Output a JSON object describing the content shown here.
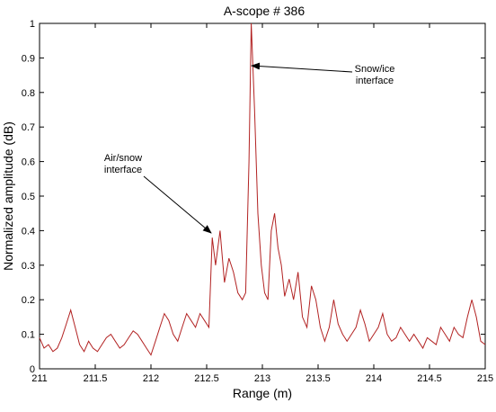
{
  "chart_data": {
    "type": "line",
    "title": "A-scope # 386",
    "xlabel": "Range (m)",
    "ylabel": "Normalized amplitude (dB)",
    "xlim": [
      211,
      215
    ],
    "ylim": [
      0,
      1
    ],
    "x_ticks": [
      211,
      211.5,
      212,
      212.5,
      213,
      213.5,
      214,
      214.5,
      215
    ],
    "x_tick_labels": [
      "211",
      "211.5",
      "212",
      "212.5",
      "213",
      "213.5",
      "214",
      "214.5",
      "215"
    ],
    "y_ticks": [
      0,
      0.1,
      0.2,
      0.3,
      0.4,
      0.5,
      0.6,
      0.7,
      0.8,
      0.9,
      1
    ],
    "y_tick_labels": [
      "0",
      "0.1",
      "0.2",
      "0.3",
      "0.4",
      "0.5",
      "0.6",
      "0.7",
      "0.8",
      "0.9",
      "1"
    ],
    "grid": false,
    "line_color": "#b22222",
    "series": [
      {
        "x": [
          211.0,
          211.04,
          211.08,
          211.12,
          211.16,
          211.2,
          211.24,
          211.28,
          211.32,
          211.36,
          211.4,
          211.44,
          211.48,
          211.52,
          211.56,
          211.6,
          211.64,
          211.68,
          211.72,
          211.76,
          211.8,
          211.84,
          211.88,
          211.92,
          211.96,
          212.0,
          212.04,
          212.08,
          212.12,
          212.16,
          212.2,
          212.24,
          212.28,
          212.32,
          212.36,
          212.4,
          212.44,
          212.48,
          212.52,
          212.55,
          212.58,
          212.62,
          212.66,
          212.7,
          212.74,
          212.78,
          212.82,
          212.85,
          212.88,
          212.9,
          212.93,
          212.96,
          212.99,
          213.02,
          213.05,
          213.08,
          213.11,
          213.14,
          213.17,
          213.2,
          213.24,
          213.28,
          213.32,
          213.36,
          213.4,
          213.44,
          213.48,
          213.52,
          213.56,
          213.6,
          213.64,
          213.68,
          213.72,
          213.76,
          213.8,
          213.84,
          213.88,
          213.92,
          213.96,
          214.0,
          214.04,
          214.08,
          214.12,
          214.16,
          214.2,
          214.24,
          214.28,
          214.32,
          214.36,
          214.4,
          214.44,
          214.48,
          214.52,
          214.56,
          214.6,
          214.64,
          214.68,
          214.72,
          214.76,
          214.8,
          214.84,
          214.88,
          214.92,
          214.96,
          215.0
        ],
        "y": [
          0.09,
          0.06,
          0.07,
          0.05,
          0.06,
          0.09,
          0.13,
          0.17,
          0.12,
          0.07,
          0.05,
          0.08,
          0.06,
          0.05,
          0.07,
          0.09,
          0.1,
          0.08,
          0.06,
          0.07,
          0.09,
          0.11,
          0.1,
          0.08,
          0.06,
          0.04,
          0.08,
          0.12,
          0.16,
          0.14,
          0.1,
          0.08,
          0.12,
          0.16,
          0.14,
          0.12,
          0.16,
          0.14,
          0.12,
          0.38,
          0.3,
          0.4,
          0.25,
          0.32,
          0.28,
          0.22,
          0.2,
          0.22,
          0.6,
          1.0,
          0.75,
          0.45,
          0.3,
          0.22,
          0.2,
          0.4,
          0.45,
          0.35,
          0.3,
          0.21,
          0.26,
          0.2,
          0.28,
          0.15,
          0.12,
          0.24,
          0.2,
          0.12,
          0.08,
          0.12,
          0.2,
          0.13,
          0.1,
          0.08,
          0.1,
          0.12,
          0.17,
          0.13,
          0.08,
          0.1,
          0.12,
          0.16,
          0.1,
          0.08,
          0.09,
          0.12,
          0.1,
          0.08,
          0.1,
          0.08,
          0.06,
          0.09,
          0.08,
          0.07,
          0.12,
          0.1,
          0.08,
          0.12,
          0.1,
          0.09,
          0.15,
          0.2,
          0.15,
          0.08,
          0.07
        ]
      }
    ],
    "annotations": [
      {
        "lines": [
          "Snow/ice",
          "interface"
        ],
        "target_x": 212.9,
        "target_y": 0.88
      },
      {
        "lines": [
          "Air/snow",
          "interface"
        ],
        "target_x": 212.58,
        "target_y": 0.4
      }
    ]
  }
}
